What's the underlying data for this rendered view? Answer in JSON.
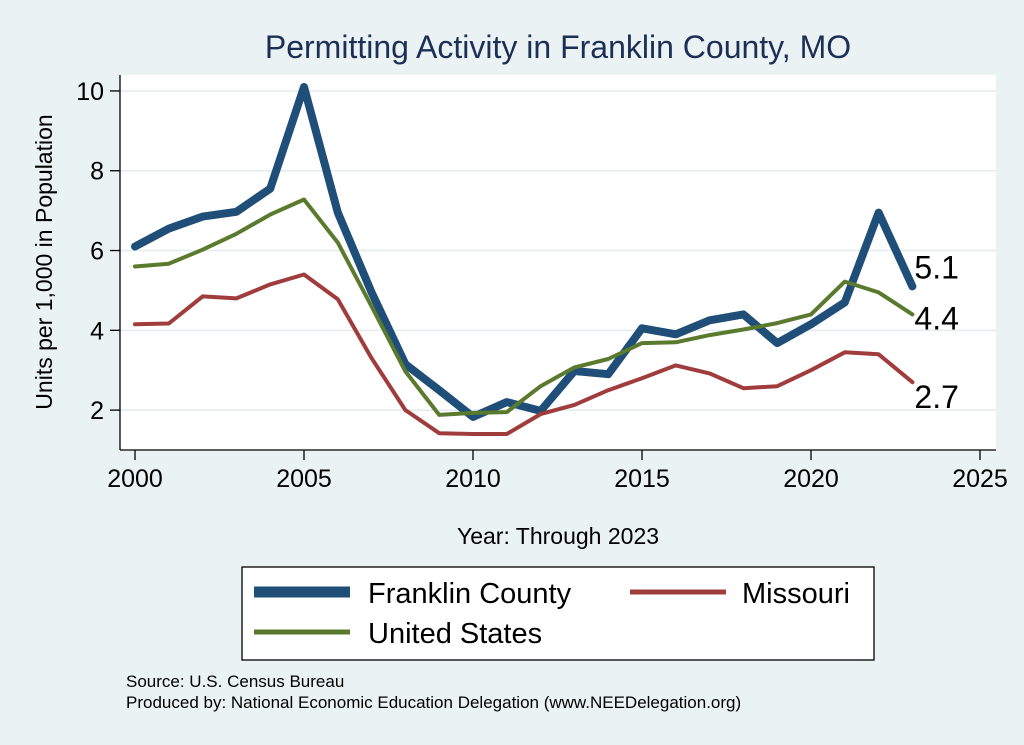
{
  "chart_data": {
    "type": "line",
    "title": "Permitting Activity in Franklin County, MO",
    "xlabel": "Year: Through 2023",
    "ylabel": "Units per 1,000 in Population",
    "xlim": [
      2000,
      2025
    ],
    "ylim": [
      1,
      10.4
    ],
    "xticks": [
      2000,
      2005,
      2010,
      2015,
      2020,
      2025
    ],
    "yticks": [
      2,
      4,
      6,
      8,
      10
    ],
    "x": [
      2000,
      2001,
      2002,
      2003,
      2004,
      2005,
      2006,
      2007,
      2008,
      2009,
      2010,
      2011,
      2012,
      2013,
      2014,
      2015,
      2016,
      2017,
      2018,
      2019,
      2020,
      2021,
      2022,
      2023
    ],
    "series": [
      {
        "name": "Franklin County",
        "color": "#1f4e79",
        "end_label": "5.1",
        "values": [
          6.1,
          6.55,
          6.85,
          6.97,
          7.55,
          10.1,
          6.95,
          4.95,
          3.15,
          2.5,
          1.83,
          2.2,
          1.98,
          2.98,
          2.9,
          4.05,
          3.9,
          4.25,
          4.4,
          3.68,
          4.15,
          4.7,
          6.95,
          5.1
        ]
      },
      {
        "name": "Missouri",
        "color": "#a03c3c",
        "end_label": "2.7",
        "values": [
          4.15,
          4.17,
          4.85,
          4.8,
          5.15,
          5.4,
          4.78,
          3.3,
          2.0,
          1.42,
          1.4,
          1.4,
          1.9,
          2.13,
          2.5,
          2.8,
          3.12,
          2.92,
          2.55,
          2.6,
          3.0,
          3.45,
          3.4,
          2.7
        ]
      },
      {
        "name": "United States",
        "color": "#5a7a2e",
        "end_label": "4.4",
        "values": [
          5.6,
          5.67,
          6.02,
          6.42,
          6.9,
          7.28,
          6.2,
          4.6,
          2.97,
          1.88,
          1.93,
          1.95,
          2.6,
          3.07,
          3.28,
          3.68,
          3.7,
          3.88,
          4.02,
          4.18,
          4.4,
          5.22,
          4.95,
          4.4
        ]
      }
    ],
    "legend": [
      "Franklin County",
      "Missouri",
      "United States"
    ],
    "legend_position": "bottom",
    "grid": true
  },
  "notes": {
    "source": "Source: U.S. Census Bureau",
    "producer": "Produced by: National Economic Education Delegation (www.NEEDelegation.org)"
  }
}
